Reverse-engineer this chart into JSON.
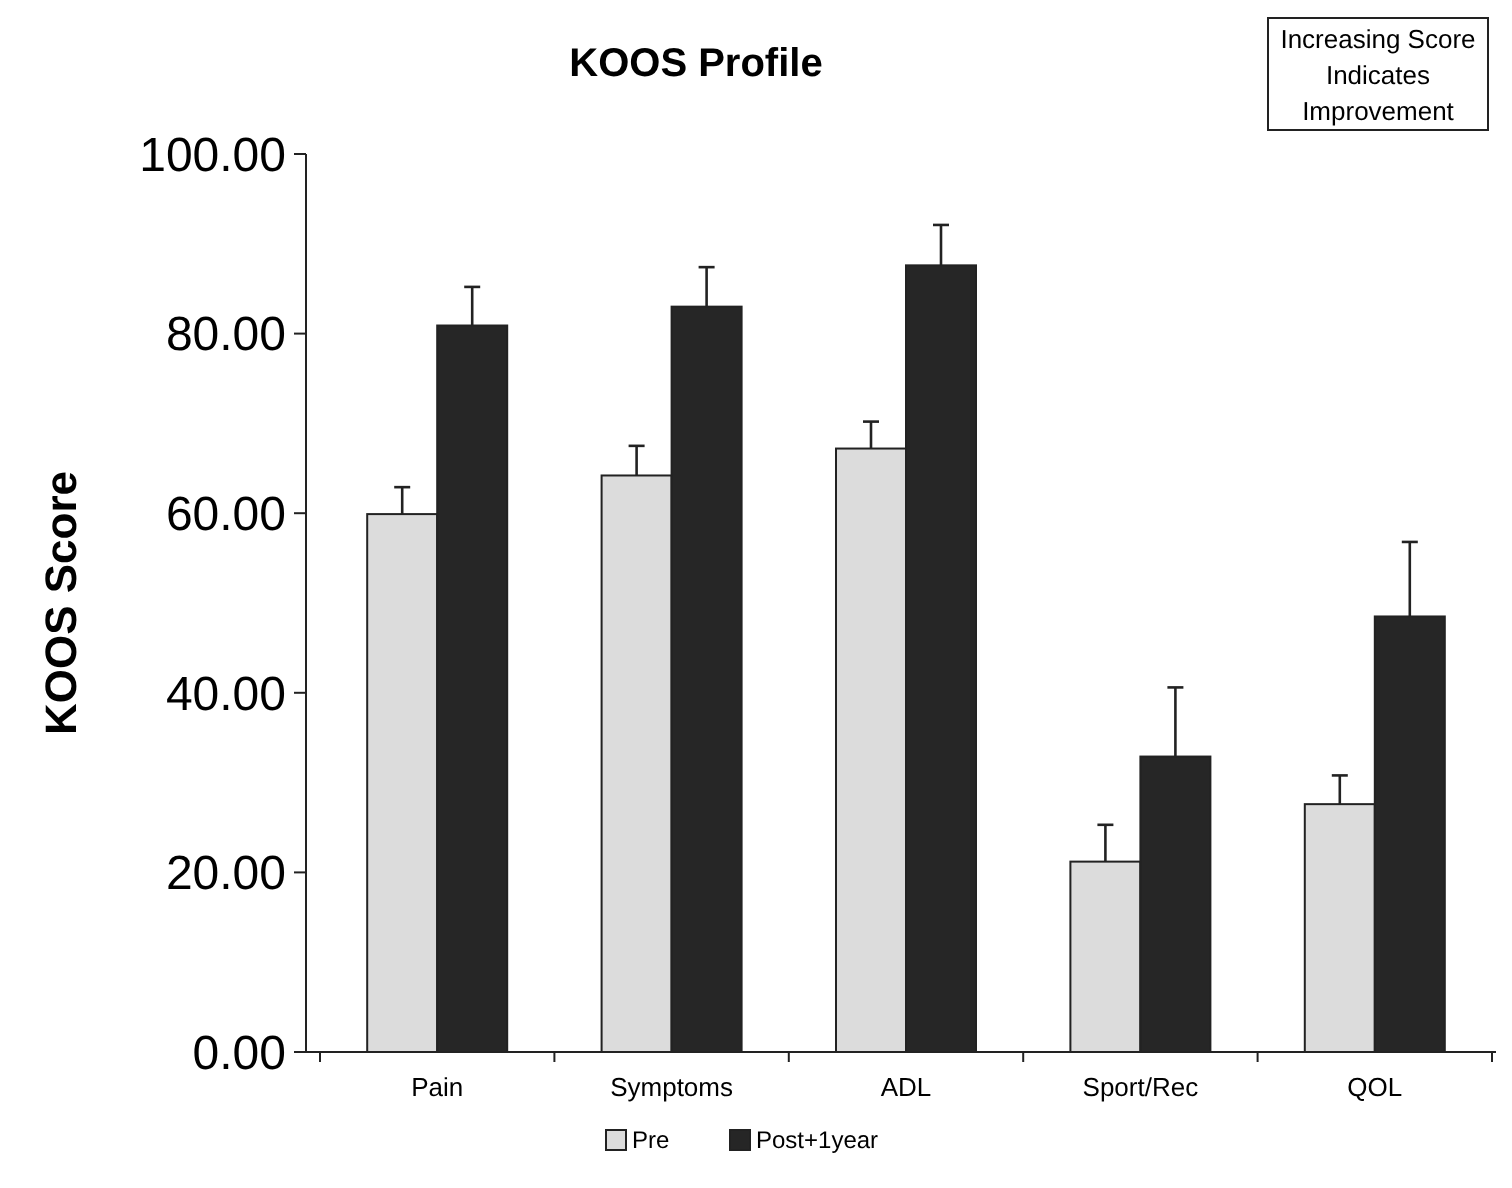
{
  "chart_data": {
    "type": "bar",
    "title": "KOOS Profile",
    "ylabel": "KOOS Score",
    "annotations": [
      "Increasing Score Indicates Improvement"
    ],
    "categories": [
      "Pain",
      "Symptoms",
      "ADL",
      "Sport/Rec",
      "QOL"
    ],
    "series": [
      {
        "name": "Pre",
        "color": "#dcdcdc",
        "values": [
          59.9,
          64.2,
          67.2,
          21.2,
          27.6
        ],
        "errors": [
          3.0,
          3.3,
          3.0,
          4.1,
          3.2
        ]
      },
      {
        "name": "Post+1year",
        "color": "#262626",
        "values": [
          80.9,
          83.0,
          87.6,
          32.9,
          48.5
        ],
        "errors": [
          4.3,
          4.4,
          4.5,
          7.7,
          8.3
        ]
      }
    ],
    "ylim": [
      0,
      100
    ],
    "yticks": [
      {
        "value": 0,
        "label": "0.00"
      },
      {
        "value": 20,
        "label": "20.00"
      },
      {
        "value": 40,
        "label": "40.00"
      },
      {
        "value": 60,
        "label": "60.00"
      },
      {
        "value": 80,
        "label": "80.00"
      },
      {
        "value": 100,
        "label": "100.00"
      }
    ],
    "grid": false,
    "legend": "bottom"
  }
}
